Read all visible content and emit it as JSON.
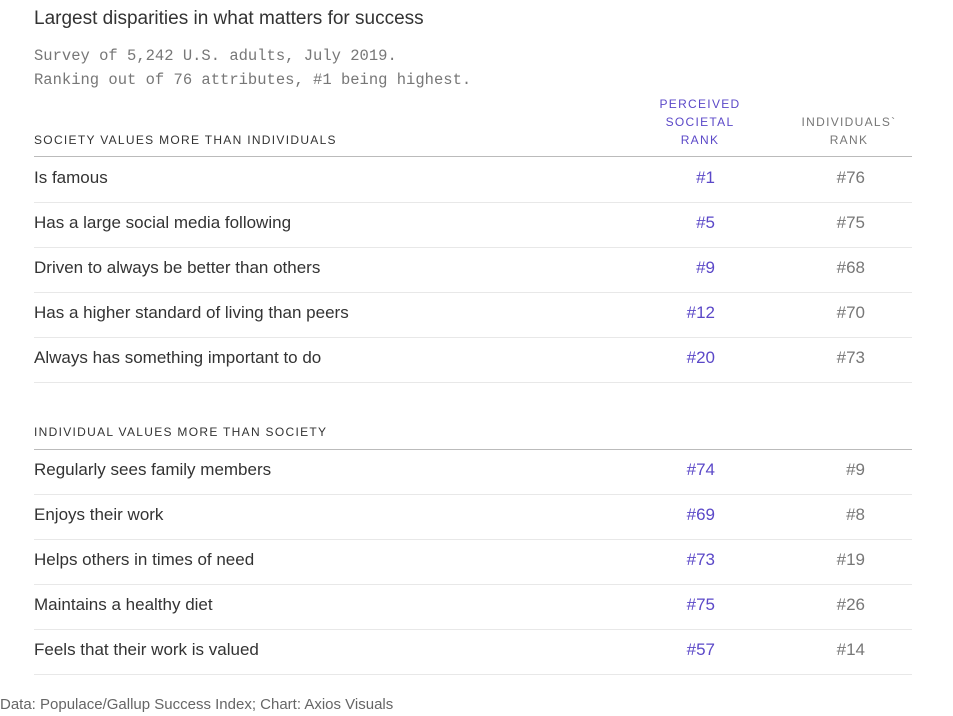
{
  "title": "Largest disparities in what matters for success",
  "subtitle_lines": [
    "Survey of 5,242 U.S. adults, July 2019.",
    "Ranking out of 76 attributes, #1 being highest."
  ],
  "columns": {
    "societal": [
      "PERCEIVED",
      "SOCIETAL",
      "RANK"
    ],
    "individual": [
      "INDIVIDUALS`",
      "RANK"
    ]
  },
  "colors": {
    "societal": "#5b48c8",
    "individual": "#777777",
    "text": "#333333"
  },
  "footer": "Data: Populace/Gallup Success Index; Chart: Axios Visuals",
  "chart_data": {
    "type": "table",
    "title": "Largest disparities in what matters for success",
    "columns": [
      "",
      "Perceived societal rank",
      "Individuals` rank"
    ],
    "sections": [
      {
        "heading": "SOCIETY VALUES MORE THAN INDIVIDUALS",
        "rows": [
          {
            "label": "Is famous",
            "societal": "#1",
            "individual": "#76"
          },
          {
            "label": "Has a large social media following",
            "societal": "#5",
            "individual": "#75"
          },
          {
            "label": "Driven to always be better than others",
            "societal": "#9",
            "individual": "#68"
          },
          {
            "label": "Has a higher standard of living than peers",
            "societal": "#12",
            "individual": "#70"
          },
          {
            "label": "Always has something important to do",
            "societal": "#20",
            "individual": "#73"
          }
        ]
      },
      {
        "heading": "INDIVIDUAL VALUES MORE THAN SOCIETY",
        "rows": [
          {
            "label": "Regularly sees family members",
            "societal": "#74",
            "individual": "#9"
          },
          {
            "label": "Enjoys their work",
            "societal": "#69",
            "individual": "#8"
          },
          {
            "label": "Helps others in times of need",
            "societal": "#73",
            "individual": "#19"
          },
          {
            "label": "Maintains a healthy diet",
            "societal": "#75",
            "individual": "#26"
          },
          {
            "label": "Feels that their work is valued",
            "societal": "#57",
            "individual": "#14"
          }
        ]
      }
    ]
  }
}
